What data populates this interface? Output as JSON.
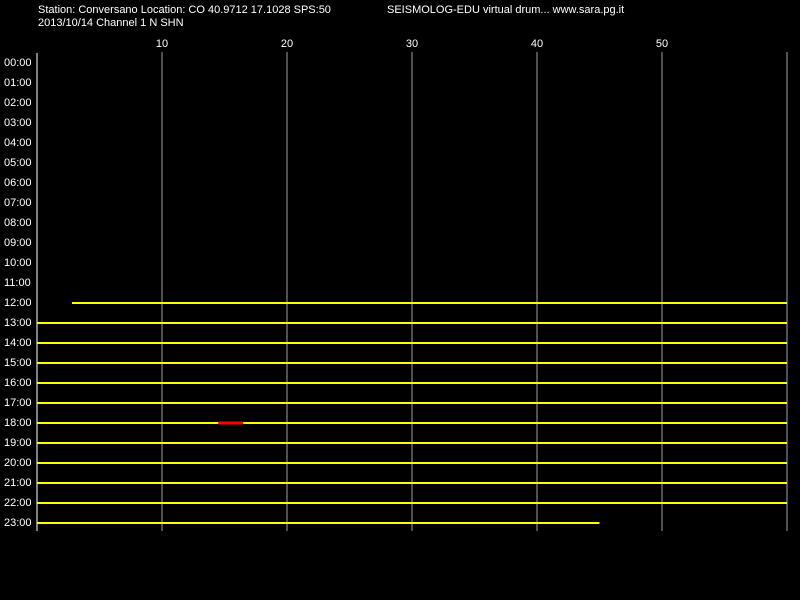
{
  "header": {
    "station": "Station: Conversano Location: CO 40.9712 17.1028 SPS:50",
    "source": "SEISMOLOG-EDU virtual drum... www.sara.pg.it",
    "date_channel": "2013/10/14  Channel 1 N SHN"
  },
  "chart_data": {
    "type": "helicorder",
    "xlim": [
      0,
      60
    ],
    "xticks": [
      10,
      20,
      30,
      40,
      50
    ],
    "grid": true,
    "grid_color": "#a0a0a0",
    "rows": [
      "00:00",
      "01:00",
      "02:00",
      "03:00",
      "04:00",
      "05:00",
      "06:00",
      "07:00",
      "08:00",
      "09:00",
      "10:00",
      "11:00",
      "12:00",
      "13:00",
      "14:00",
      "15:00",
      "16:00",
      "17:00",
      "18:00",
      "19:00",
      "20:00",
      "21:00",
      "22:00",
      "23:00"
    ],
    "trace_color": "#ffff00",
    "traces": [
      {
        "row": 12,
        "start": 2.8,
        "end": 60
      },
      {
        "row": 13,
        "start": 0,
        "end": 60
      },
      {
        "row": 14,
        "start": 0,
        "end": 60
      },
      {
        "row": 15,
        "start": 0,
        "end": 60
      },
      {
        "row": 16,
        "start": 0,
        "end": 60
      },
      {
        "row": 17,
        "start": 0,
        "end": 60
      },
      {
        "row": 18,
        "start": 0,
        "end": 60
      },
      {
        "row": 19,
        "start": 0,
        "end": 60
      },
      {
        "row": 20,
        "start": 0,
        "end": 60
      },
      {
        "row": 21,
        "start": 0,
        "end": 60
      },
      {
        "row": 22,
        "start": 0,
        "end": 60
      },
      {
        "row": 23,
        "start": 0,
        "end": 45
      }
    ],
    "event": {
      "row": 18,
      "start": 14.5,
      "end": 16.5,
      "color": "#ff0000"
    }
  }
}
